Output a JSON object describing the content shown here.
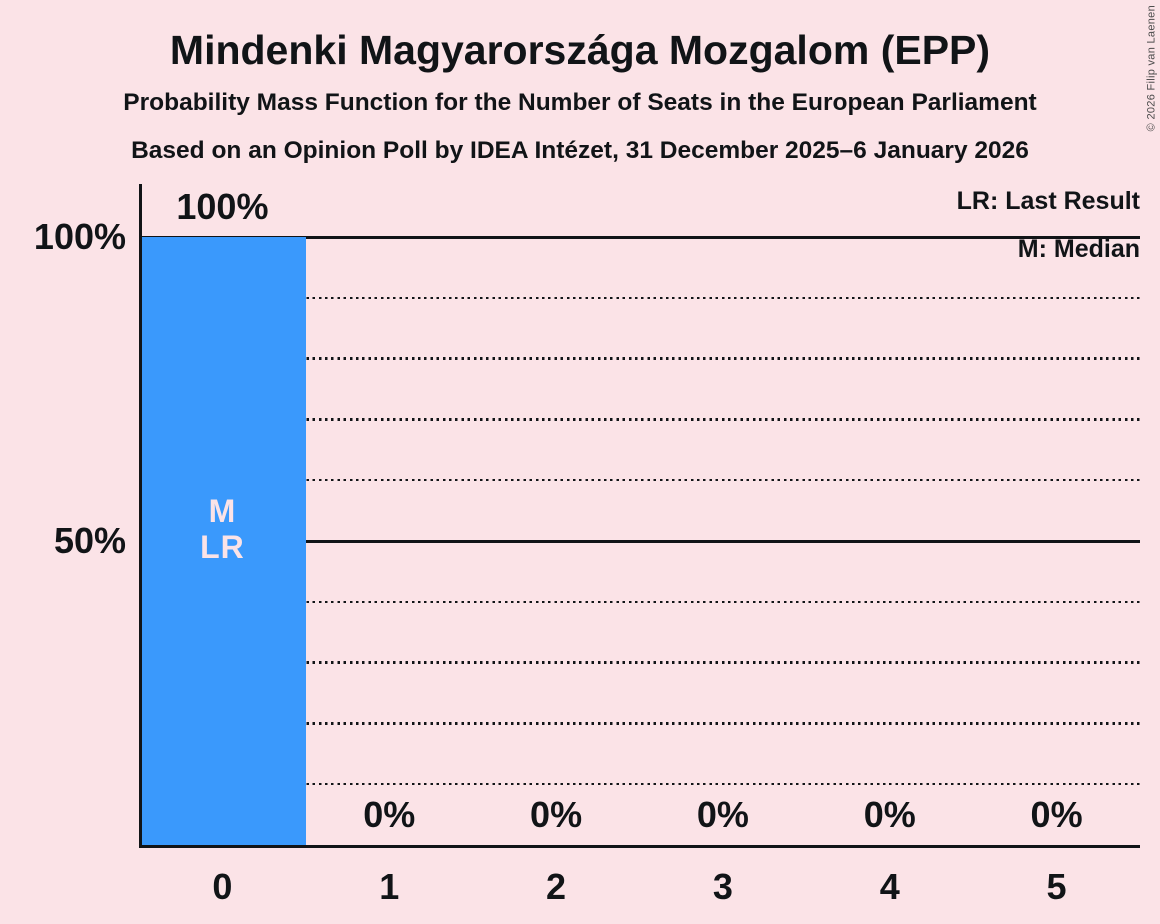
{
  "header": {
    "title": "Mindenki Magyarországa Mozgalom (EPP)",
    "subtitle_line1": "Probability Mass Function for the Number of Seats in the European Parliament",
    "subtitle_line2": "Based on an Opinion Poll by IDEA Intézet, 31 December 2025–6 January 2026"
  },
  "copyright": "© 2026 Filip van Laenen",
  "legend": {
    "last_result": "LR: Last Result",
    "median": "M: Median"
  },
  "colors": {
    "background": "#fbe3e7",
    "bar": "#3a99fc",
    "ink": "#111417",
    "bar_label": "#fbe3e7",
    "copyright": "#4d4d4d"
  },
  "chart_data": {
    "type": "bar",
    "title": "Mindenki Magyarországa Mozgalom (EPP)",
    "categories": [
      "0",
      "1",
      "2",
      "3",
      "4",
      "5"
    ],
    "values": [
      100,
      0,
      0,
      0,
      0,
      0
    ],
    "value_labels": [
      "100%",
      "0%",
      "0%",
      "0%",
      "0%",
      "0%"
    ],
    "ylim": [
      0,
      100
    ],
    "yticks": [
      {
        "label": "100%",
        "value": 100
      },
      {
        "label": "50%",
        "value": 50
      }
    ],
    "solid_gridlines": [
      100,
      50
    ],
    "dotted_gridlines": [
      90,
      80,
      70,
      60,
      40,
      30,
      20,
      10
    ],
    "bar_annotations": [
      {
        "category": "0",
        "lines": [
          "M",
          "LR"
        ]
      }
    ],
    "median_seats": 0,
    "last_result_seats": 0,
    "legend_position": "top-right",
    "grid": "horizontal-dotted"
  }
}
